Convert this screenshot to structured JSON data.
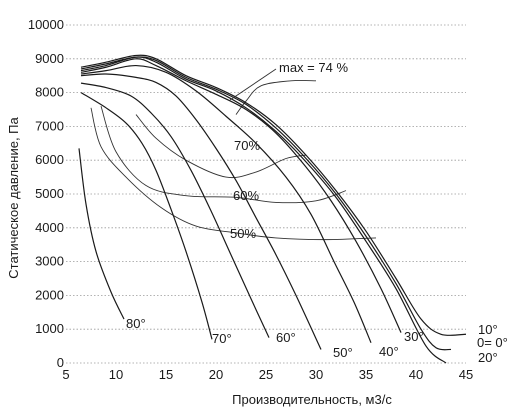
{
  "chart_data": {
    "type": "line",
    "xlabel": "Производительность,  м3/с",
    "ylabel": "Статическое давление, Па",
    "xlim": [
      5,
      45
    ],
    "ylim": [
      0,
      10000
    ],
    "x_ticks": [
      "5",
      "10",
      "15",
      "20",
      "25",
      "30",
      "35",
      "40",
      "45"
    ],
    "y_ticks": [
      "0",
      "1000",
      "2000",
      "3000",
      "4000",
      "5000",
      "6000",
      "7000",
      "8000",
      "9000",
      "10000"
    ],
    "grid": true,
    "series": [
      {
        "name": "80°",
        "points": [
          [
            6.3,
            6350
          ],
          [
            7,
            4700
          ],
          [
            8,
            3300
          ],
          [
            9.5,
            2100
          ],
          [
            10.8,
            1300
          ]
        ]
      },
      {
        "name": "70°",
        "points": [
          [
            6.5,
            8000
          ],
          [
            9,
            7550
          ],
          [
            11,
            7100
          ],
          [
            12.6,
            6500
          ],
          [
            14,
            5700
          ],
          [
            15.5,
            4550
          ],
          [
            17,
            3300
          ],
          [
            18.6,
            1800
          ],
          [
            19.6,
            700
          ]
        ]
      },
      {
        "name": "60°",
        "points": [
          [
            6.5,
            8280
          ],
          [
            9,
            8150
          ],
          [
            11.5,
            7900
          ],
          [
            13.5,
            7400
          ],
          [
            15.5,
            6700
          ],
          [
            17.5,
            5700
          ],
          [
            19.5,
            4500
          ],
          [
            21.5,
            3200
          ],
          [
            23.5,
            1900
          ],
          [
            25.3,
            750
          ]
        ]
      },
      {
        "name": "50°",
        "points": [
          [
            6.5,
            8500
          ],
          [
            9,
            8550
          ],
          [
            12,
            8450
          ],
          [
            14,
            8300
          ],
          [
            16,
            7900
          ],
          [
            18,
            7200
          ],
          [
            20,
            6350
          ],
          [
            22,
            5400
          ],
          [
            24,
            4300
          ],
          [
            26,
            3200
          ],
          [
            28,
            2000
          ],
          [
            30.5,
            400
          ]
        ]
      },
      {
        "name": "40°",
        "points": [
          [
            6.5,
            8550
          ],
          [
            9,
            8650
          ],
          [
            12,
            8800
          ],
          [
            15,
            8600
          ],
          [
            18,
            8050
          ],
          [
            21,
            7300
          ],
          [
            24,
            6500
          ],
          [
            27,
            5500
          ],
          [
            29.5,
            4400
          ],
          [
            31.8,
            3000
          ],
          [
            33.8,
            1800
          ],
          [
            35.5,
            600
          ]
        ]
      },
      {
        "name": "30°",
        "points": [
          [
            6.5,
            8600
          ],
          [
            9,
            8750
          ],
          [
            12,
            9000
          ],
          [
            14,
            8800
          ],
          [
            17,
            8350
          ],
          [
            20,
            7950
          ],
          [
            23,
            7500
          ],
          [
            26,
            6800
          ],
          [
            29,
            5800
          ],
          [
            31.5,
            4800
          ],
          [
            34,
            3600
          ],
          [
            36.5,
            2200
          ],
          [
            38.5,
            900
          ]
        ]
      },
      {
        "name": "20°",
        "points": [
          [
            6.5,
            8650
          ],
          [
            9,
            8800
          ],
          [
            12,
            9050
          ],
          [
            14,
            8900
          ],
          [
            17,
            8400
          ],
          [
            20,
            8050
          ],
          [
            23,
            7550
          ],
          [
            26,
            6850
          ],
          [
            29,
            5950
          ],
          [
            32,
            4900
          ],
          [
            35,
            3600
          ],
          [
            38,
            2200
          ],
          [
            41,
            500
          ],
          [
            43,
            0
          ]
        ]
      },
      {
        "name": "0= 0°",
        "points": [
          [
            6.5,
            8700
          ],
          [
            9,
            8850
          ],
          [
            12,
            9050
          ],
          [
            14,
            8950
          ],
          [
            17,
            8450
          ],
          [
            20,
            8100
          ],
          [
            23,
            7650
          ],
          [
            26,
            6950
          ],
          [
            29,
            6050
          ],
          [
            32,
            5000
          ],
          [
            35,
            3750
          ],
          [
            38,
            2350
          ],
          [
            40.5,
            1000
          ],
          [
            42,
            450
          ],
          [
            43.5,
            400
          ]
        ]
      },
      {
        "name": "10°",
        "points": [
          [
            6.5,
            8750
          ],
          [
            9,
            8900
          ],
          [
            12,
            9100
          ],
          [
            14,
            9000
          ],
          [
            17,
            8500
          ],
          [
            20,
            8150
          ],
          [
            23,
            7700
          ],
          [
            26,
            7050
          ],
          [
            29,
            6150
          ],
          [
            32,
            5100
          ],
          [
            35,
            3900
          ],
          [
            38,
            2500
          ],
          [
            40.5,
            1300
          ],
          [
            42.5,
            850
          ],
          [
            45,
            850
          ]
        ]
      }
    ],
    "efficiency_contours": [
      {
        "name": "max = 74 %",
        "points": [
          [
            22,
            7350
          ],
          [
            23,
            7750
          ],
          [
            24.5,
            8200
          ],
          [
            27.5,
            8350
          ],
          [
            30,
            8350
          ]
        ]
      },
      {
        "name": "70%",
        "points": [
          [
            12,
            7350
          ],
          [
            14,
            6650
          ],
          [
            17,
            6000
          ],
          [
            21,
            5500
          ],
          [
            24,
            5650
          ],
          [
            27,
            6050
          ],
          [
            29,
            6150
          ]
        ]
      },
      {
        "name": "60%",
        "points": [
          [
            8.5,
            7600
          ],
          [
            10,
            6250
          ],
          [
            13,
            5250
          ],
          [
            17,
            4950
          ],
          [
            22,
            4900
          ],
          [
            26,
            4750
          ],
          [
            30,
            4800
          ],
          [
            33,
            5100
          ]
        ]
      },
      {
        "name": "50%",
        "points": [
          [
            7.5,
            7550
          ],
          [
            8.5,
            6400
          ],
          [
            11,
            5500
          ],
          [
            14.5,
            4600
          ],
          [
            18,
            4050
          ],
          [
            22,
            3850
          ],
          [
            26,
            3700
          ],
          [
            31,
            3650
          ],
          [
            36,
            3700
          ]
        ]
      }
    ]
  }
}
